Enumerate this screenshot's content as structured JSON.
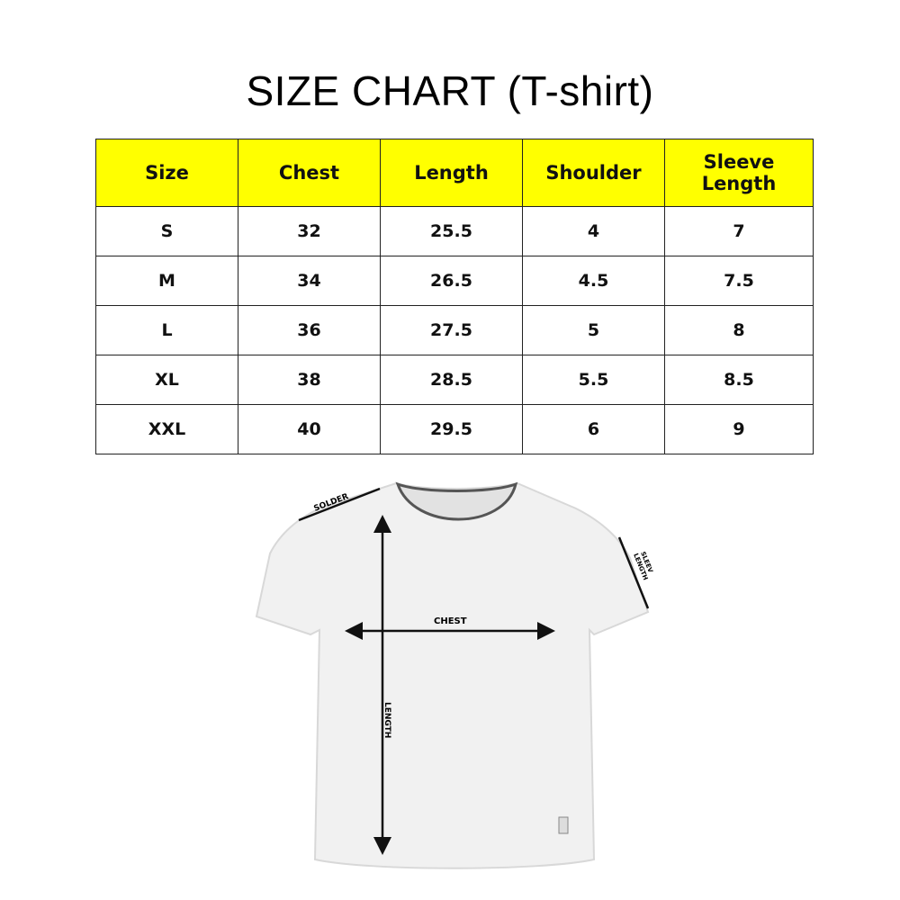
{
  "title": "SIZE CHART (T-shirt)",
  "table": {
    "header_color": "#ffff00",
    "headers": [
      "Size",
      "Chest",
      "Length",
      "Shoulder",
      "Sleeve Length"
    ],
    "rows": [
      [
        "S",
        "32",
        "25.5",
        "4",
        "7"
      ],
      [
        "M",
        "34",
        "26.5",
        "4.5",
        "7.5"
      ],
      [
        "L",
        "36",
        "27.5",
        "5",
        "8"
      ],
      [
        "XL",
        "38",
        "28.5",
        "5.5",
        "8.5"
      ],
      [
        "XXL",
        "40",
        "29.5",
        "6",
        "9"
      ]
    ]
  },
  "diagram": {
    "labels": {
      "shoulder": "SOLDER",
      "sleeve_1": "SLEEV",
      "sleeve_2": "LENGTH",
      "chest": "CHEST",
      "length": "LENGTH"
    }
  }
}
